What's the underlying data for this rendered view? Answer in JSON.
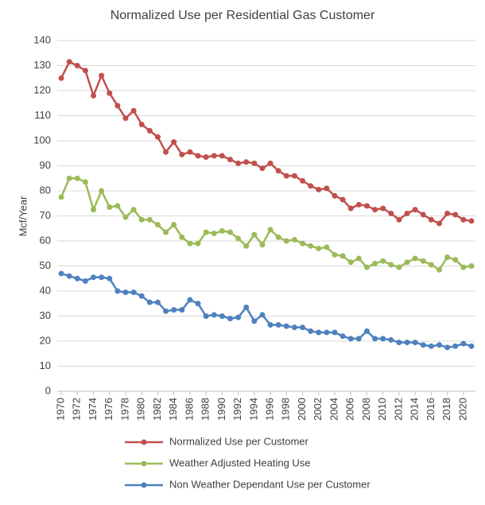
{
  "chart_data": {
    "type": "line",
    "title": "Normalized Use per Residential Gas Customer",
    "y_label": "Mcf/Year",
    "x": [
      1970,
      1971,
      1972,
      1973,
      1974,
      1975,
      1976,
      1977,
      1978,
      1979,
      1980,
      1981,
      1982,
      1983,
      1984,
      1985,
      1986,
      1987,
      1988,
      1989,
      1990,
      1991,
      1992,
      1993,
      1994,
      1995,
      1996,
      1997,
      1998,
      1999,
      2000,
      2001,
      2002,
      2003,
      2004,
      2005,
      2006,
      2007,
      2008,
      2009,
      2010,
      2011,
      2012,
      2013,
      2014,
      2015,
      2016,
      2017,
      2018,
      2019,
      2020,
      2021
    ],
    "xlim": [
      1969.5,
      2021.5
    ],
    "xticks": [
      1970,
      1972,
      1974,
      1976,
      1978,
      1980,
      1982,
      1984,
      1986,
      1988,
      1990,
      1992,
      1994,
      1996,
      1998,
      2000,
      2002,
      2004,
      2006,
      2008,
      2010,
      2012,
      2014,
      2016,
      2018,
      2020
    ],
    "ylim": [
      0,
      140
    ],
    "yticks": [
      0,
      10,
      20,
      30,
      40,
      50,
      60,
      70,
      80,
      90,
      100,
      110,
      120,
      130,
      140
    ],
    "grid": true,
    "legend": "bottom",
    "series": [
      {
        "name": "Normalized Use per Customer",
        "color": "#c0504d",
        "values": [
          125,
          131.5,
          130,
          128,
          118,
          126,
          119,
          114,
          109,
          112,
          106.5,
          104,
          101.5,
          95.5,
          99.5,
          94.5,
          95.5,
          94,
          93.5,
          94,
          94,
          92.5,
          91,
          91.5,
          91,
          89,
          91,
          88,
          86,
          86,
          84,
          82,
          80.5,
          81,
          78,
          76.5,
          73,
          74.5,
          74,
          72.5,
          73,
          71,
          68.5,
          71,
          72.5,
          70.5,
          68.5,
          67,
          71,
          70.5,
          68.5,
          68
        ]
      },
      {
        "name": "Weather Adjusted Heating Use",
        "color": "#9bbb59",
        "values": [
          77.5,
          85,
          85,
          83.5,
          72.5,
          80,
          73.5,
          74,
          69.5,
          72.5,
          68.5,
          68.5,
          66.5,
          63.5,
          66.5,
          61.5,
          59,
          59,
          63.5,
          63,
          64,
          63.5,
          61,
          58,
          62.5,
          58.5,
          64.5,
          61.5,
          60,
          60.5,
          59,
          58,
          57,
          57.5,
          54.5,
          54,
          51.5,
          53,
          49.5,
          51,
          52,
          50.5,
          49.5,
          51.5,
          53,
          52,
          50.5,
          48.5,
          53.5,
          52.5,
          49.5,
          50
        ]
      },
      {
        "name": "Non Weather Dependant Use per Customer",
        "color": "#4f81bd",
        "values": [
          47,
          46,
          45,
          44,
          45.5,
          45.5,
          45,
          40,
          39.5,
          39.5,
          38,
          35.5,
          35.5,
          32,
          32.5,
          32.5,
          36.5,
          35,
          30,
          30.5,
          30,
          29,
          29.5,
          33.5,
          28,
          30.5,
          26.5,
          26.5,
          26,
          25.5,
          25.5,
          24,
          23.5,
          23.5,
          23.5,
          22,
          21,
          21,
          24,
          21,
          21,
          20.5,
          19.5,
          19.5,
          19.5,
          18.5,
          18,
          18.5,
          17.5,
          18,
          19,
          18
        ]
      }
    ]
  }
}
